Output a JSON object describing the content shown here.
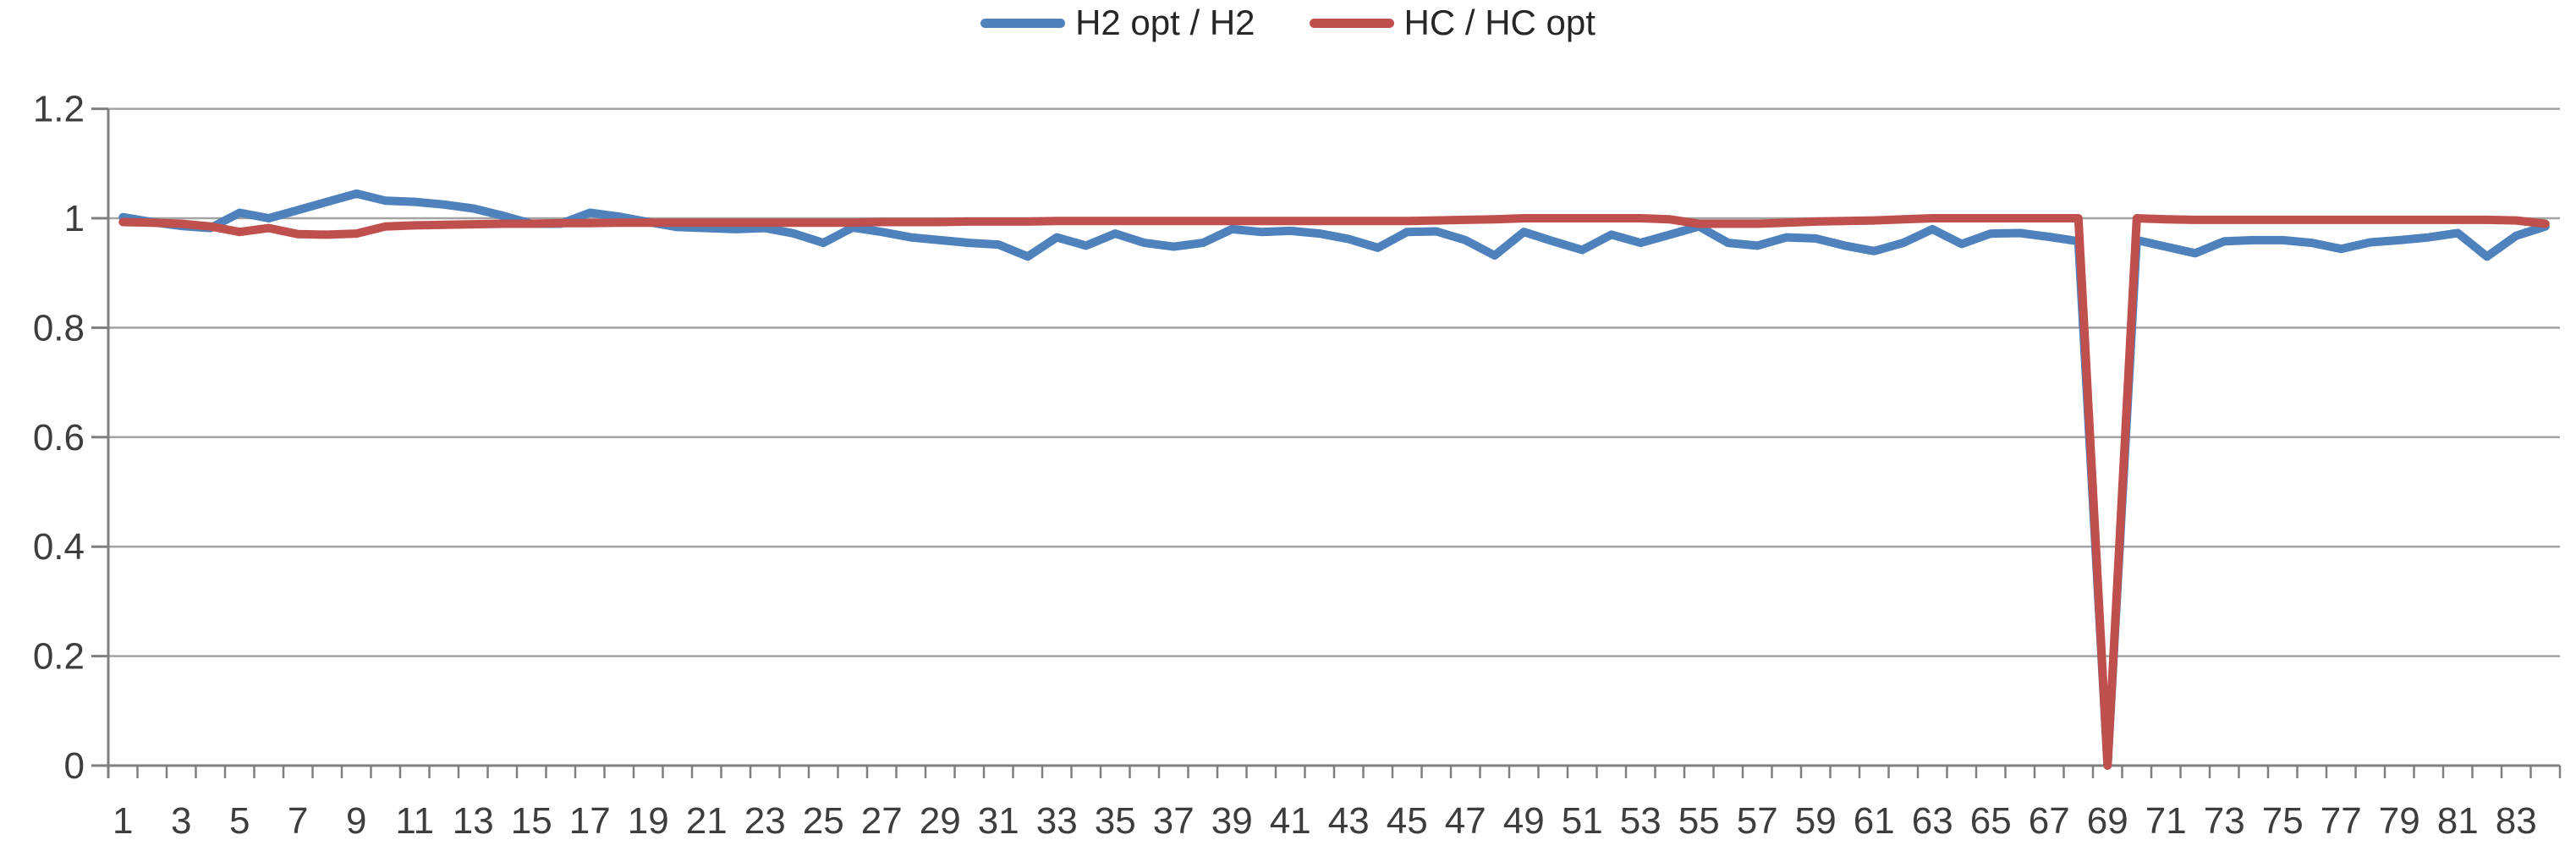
{
  "legend": {
    "items": [
      {
        "label": "H2 opt / H2",
        "color": "#4F81BD"
      },
      {
        "label": "HC / HC opt",
        "color": "#C0504D"
      }
    ]
  },
  "chart_data": {
    "type": "line",
    "title": "",
    "xlabel": "",
    "ylabel": "",
    "grid": "horizontal",
    "legend_position": "top-center",
    "ylim": [
      0,
      1.2
    ],
    "yticks": [
      0,
      0.2,
      0.4,
      0.6,
      0.8,
      1,
      1.2
    ],
    "ytick_labels": [
      "0",
      "0.2",
      "0.4",
      "0.6",
      "0.8",
      "1",
      "1.2"
    ],
    "categories": [
      1,
      2,
      3,
      4,
      5,
      6,
      7,
      8,
      9,
      10,
      11,
      12,
      13,
      14,
      15,
      16,
      17,
      18,
      19,
      20,
      21,
      22,
      23,
      24,
      25,
      26,
      27,
      28,
      29,
      30,
      31,
      32,
      33,
      34,
      35,
      36,
      37,
      38,
      39,
      40,
      41,
      42,
      43,
      44,
      45,
      46,
      47,
      48,
      49,
      50,
      51,
      52,
      53,
      54,
      55,
      56,
      57,
      58,
      59,
      60,
      61,
      62,
      63,
      64,
      65,
      66,
      67,
      68,
      69,
      70,
      71,
      72,
      73,
      74,
      75,
      76,
      77,
      78,
      79,
      80,
      81,
      82,
      83,
      84
    ],
    "x_axis_labels": [
      "1",
      "3",
      "5",
      "7",
      "9",
      "11",
      "13",
      "15",
      "17",
      "19",
      "21",
      "23",
      "25",
      "27",
      "29",
      "31",
      "33",
      "35",
      "37",
      "39",
      "41",
      "43",
      "45",
      "47",
      "49",
      "51",
      "53",
      "55",
      "57",
      "59",
      "61",
      "63",
      "65",
      "67",
      "69",
      "71",
      "73",
      "75",
      "77",
      "79",
      "81",
      "83"
    ],
    "series": [
      {
        "name": "H2 opt / H2",
        "color": "#4F81BD",
        "values": [
          1.002,
          0.993,
          0.986,
          0.982,
          1.01,
          1.0,
          1.015,
          1.03,
          1.045,
          1.032,
          1.03,
          1.025,
          1.018,
          1.005,
          0.99,
          0.99,
          1.01,
          1.003,
          0.993,
          0.984,
          0.982,
          0.98,
          0.982,
          0.972,
          0.955,
          0.983,
          0.975,
          0.965,
          0.96,
          0.955,
          0.952,
          0.93,
          0.965,
          0.95,
          0.972,
          0.955,
          0.948,
          0.955,
          0.98,
          0.975,
          0.977,
          0.972,
          0.962,
          0.946,
          0.975,
          0.976,
          0.96,
          0.932,
          0.975,
          0.958,
          0.942,
          0.97,
          0.955,
          0.97,
          0.985,
          0.955,
          0.95,
          0.965,
          0.963,
          0.95,
          0.94,
          0.955,
          0.98,
          0.953,
          0.972,
          0.973,
          0.966,
          0.958,
          0.0,
          0.96,
          0.948,
          0.936,
          0.958,
          0.96,
          0.96,
          0.955,
          0.944,
          0.956,
          0.96,
          0.965,
          0.973,
          0.93,
          0.968,
          0.985
        ]
      },
      {
        "name": "HC / HC opt",
        "color": "#C0504D",
        "values": [
          0.993,
          0.992,
          0.99,
          0.985,
          0.975,
          0.982,
          0.971,
          0.97,
          0.972,
          0.985,
          0.987,
          0.988,
          0.989,
          0.99,
          0.99,
          0.991,
          0.991,
          0.992,
          0.992,
          0.992,
          0.992,
          0.992,
          0.992,
          0.992,
          0.992,
          0.992,
          0.993,
          0.993,
          0.993,
          0.994,
          0.994,
          0.994,
          0.995,
          0.995,
          0.995,
          0.995,
          0.995,
          0.995,
          0.995,
          0.995,
          0.995,
          0.995,
          0.995,
          0.995,
          0.995,
          0.996,
          0.997,
          0.998,
          1.0,
          1.0,
          1.0,
          1.0,
          1.0,
          0.998,
          0.99,
          0.99,
          0.99,
          0.992,
          0.994,
          0.995,
          0.996,
          0.998,
          1.0,
          1.0,
          1.0,
          1.0,
          1.0,
          1.0,
          0.0,
          1.0,
          0.998,
          0.997,
          0.997,
          0.997,
          0.997,
          0.997,
          0.997,
          0.997,
          0.997,
          0.997,
          0.997,
          0.997,
          0.996,
          0.99
        ]
      }
    ]
  },
  "style": {
    "gridline_color": "#A3A3A3",
    "axis_color": "#7F7F7F",
    "tick_text_color": "#3d3d3d",
    "background": "#FFFFFF"
  }
}
